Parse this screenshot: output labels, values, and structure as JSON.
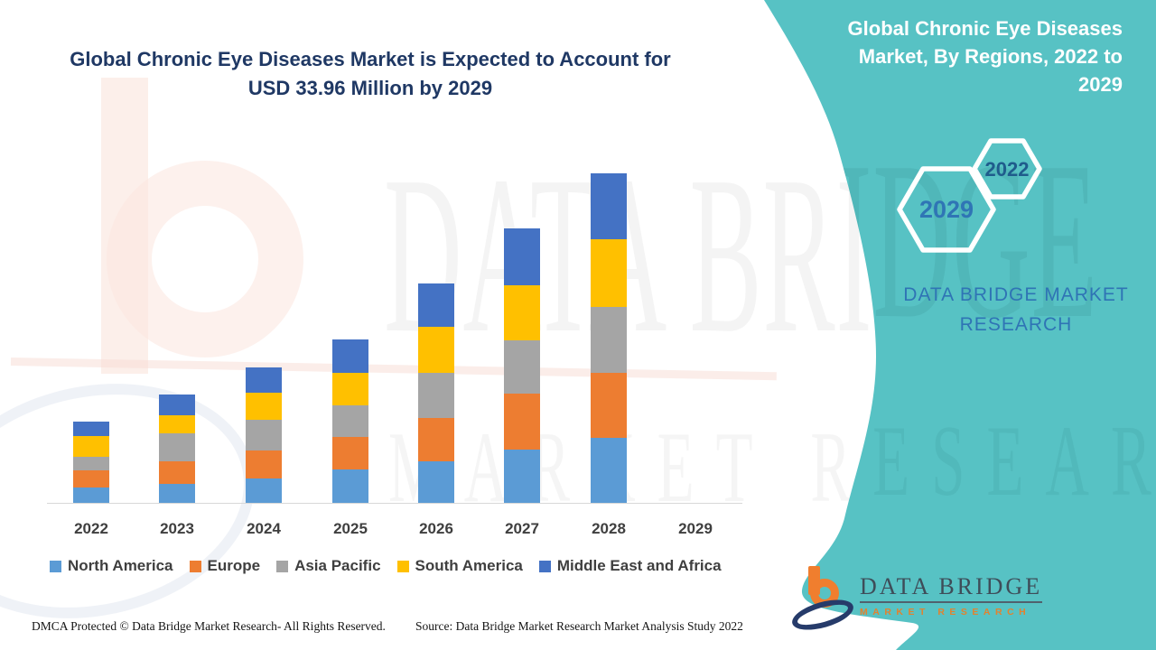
{
  "header": {
    "title_line1": "Global Chronic Eye Diseases Market is Expected to Account for",
    "title_line2": "USD 33.96 Million by 2029"
  },
  "right_panel": {
    "title": "Global Chronic Eye Diseases Market, By Regions, 2022 to 2029",
    "hexagon_large": "2029",
    "hexagon_small": "2022",
    "brand_text": "DATA BRIDGE MARKET RESEARCH",
    "background_color": "#57C2C4"
  },
  "chart_data": {
    "type": "bar",
    "stacked": true,
    "title": "Global Chronic Eye Diseases Market is Expected to Account for USD 33.96 Million by 2029",
    "units": "USD Million",
    "categories": [
      "2022",
      "2023",
      "2024",
      "2025",
      "2026",
      "2027",
      "2028",
      "2029"
    ],
    "series": [
      {
        "name": "North America",
        "color": "#5B9BD5",
        "values": [
          1.45,
          1.72,
          2.19,
          2.99,
          3.7,
          4.77,
          5.78,
          null
        ]
      },
      {
        "name": "Europe",
        "color": "#ED7D31",
        "values": [
          1.48,
          2.0,
          2.51,
          2.91,
          3.83,
          4.93,
          5.7,
          null
        ]
      },
      {
        "name": "Asia Pacific",
        "color": "#A5A5A5",
        "values": [
          1.16,
          2.43,
          2.69,
          2.77,
          3.96,
          4.64,
          5.78,
          null
        ]
      },
      {
        "name": "South America",
        "color": "#FFC000",
        "values": [
          1.85,
          1.64,
          2.38,
          2.83,
          4.04,
          4.82,
          5.95,
          null
        ]
      },
      {
        "name": "Middle East and Africa",
        "color": "#4472C4",
        "values": [
          1.27,
          1.8,
          2.2,
          2.92,
          3.8,
          5.01,
          5.79,
          null
        ]
      }
    ],
    "totals": [
      7.21,
      9.59,
      11.97,
      14.42,
      19.33,
      24.17,
      29.0,
      null
    ],
    "projected_2029_total": 33.96,
    "ylim": [
      0,
      34
    ],
    "grid": false,
    "legend_position": "bottom"
  },
  "footer": {
    "dmca": "DMCA Protected © Data Bridge Market Research- All Rights Reserved.",
    "source": "Source: Data Bridge Market Research Market Analysis Study 2022"
  },
  "logo": {
    "name": "DATA BRIDGE",
    "subtitle": "MARKET RESEARCH"
  },
  "watermarks": {
    "big_text": "DATA BRIDGE",
    "row_text": "MARKET RESEARCH"
  }
}
